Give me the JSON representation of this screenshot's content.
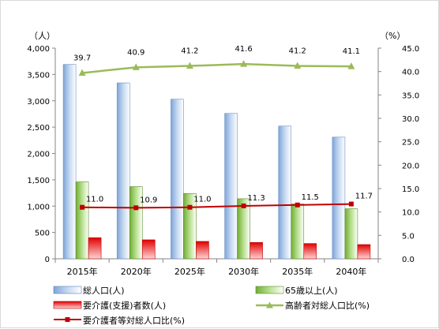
{
  "chart_data": {
    "type": "bar",
    "categories": [
      "2015年",
      "2020年",
      "2025年",
      "2030年",
      "2035年",
      "2040年"
    ],
    "left_axis": {
      "unit": "（人）",
      "min": 0,
      "max": 4000,
      "step": 500,
      "ticks": [
        "0",
        "500",
        "1,000",
        "1,500",
        "2,000",
        "2,500",
        "3,000",
        "3,500",
        "4,000"
      ]
    },
    "right_axis": {
      "unit": "（%）",
      "min": 0,
      "max": 45,
      "step": 5,
      "ticks": [
        "0.0",
        "5.0",
        "10.0",
        "15.0",
        "20.0",
        "25.0",
        "30.0",
        "35.0",
        "40.0",
        "45.0"
      ]
    },
    "series": [
      {
        "name": "総人口(人)",
        "kind": "bar",
        "axis": "left",
        "color": "#8db3e2",
        "values": [
          3690,
          3340,
          3030,
          2760,
          2520,
          2310
        ]
      },
      {
        "name": "65歳以上(人)",
        "kind": "bar",
        "axis": "left",
        "color": "#92d050",
        "values": [
          1460,
          1370,
          1240,
          1140,
          1040,
          950
        ]
      },
      {
        "name": "要介護(支援)者数(人)",
        "kind": "bar",
        "axis": "left",
        "color": "#ff0000",
        "values": [
          400,
          360,
          330,
          310,
          290,
          270
        ]
      },
      {
        "name": "高齢者対総人口比(%)",
        "kind": "line",
        "axis": "right",
        "color": "#9bbb59",
        "values": [
          39.7,
          40.9,
          41.2,
          41.6,
          41.2,
          41.1
        ],
        "labels": [
          "39.7",
          "40.9",
          "41.2",
          "41.6",
          "41.2",
          "41.1"
        ]
      },
      {
        "name": "要介護者等対総人口比(%)",
        "kind": "line",
        "axis": "right",
        "color": "#c00000",
        "values": [
          11.0,
          10.9,
          11.0,
          11.3,
          11.5,
          11.7
        ],
        "labels": [
          "11.0",
          "10.9",
          "11.0",
          "11.3",
          "11.5",
          "11.7"
        ]
      }
    ],
    "grid": false,
    "legend": "bottom"
  }
}
